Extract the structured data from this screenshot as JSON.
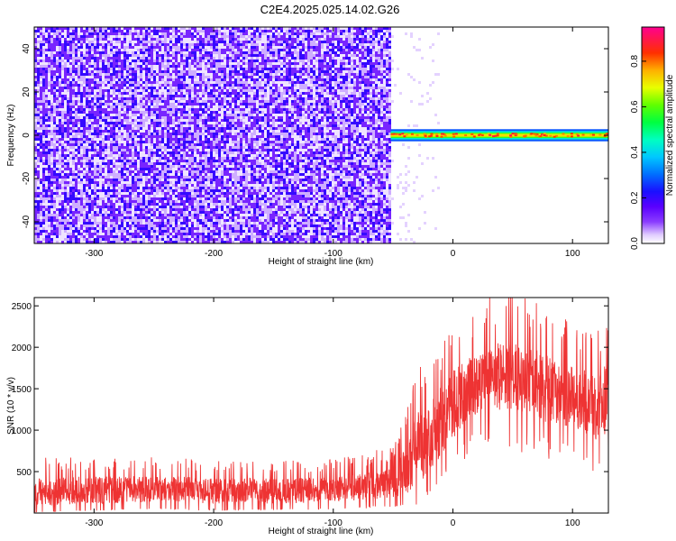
{
  "figure_title": "C2E4.2025.025.14.02.G26",
  "colors": {
    "snr_line": "#ee3333",
    "colormap": [
      "#ffffff",
      "#e7d4ff",
      "#b48cff",
      "#8a3cff",
      "#6a00ff",
      "#2020ff",
      "#0088ff",
      "#00e0ff",
      "#00ff90",
      "#40ff00",
      "#e0ff00",
      "#ffb000",
      "#ff3000",
      "#ff0080"
    ]
  },
  "chart_data": [
    {
      "type": "heatmap",
      "title": "",
      "xlabel": "Height of straight line (km)",
      "ylabel": "Frequency (Hz)",
      "xlim": [
        -350,
        130
      ],
      "ylim": [
        -50,
        50
      ],
      "xticks": [
        -300,
        -200,
        -100,
        0,
        100
      ],
      "yticks": [
        -40,
        -20,
        0,
        20,
        40
      ],
      "grid": false,
      "colorbar": {
        "label": "Normalized spectral amplitude",
        "range": [
          0,
          0.95
        ],
        "ticks": [
          0.0,
          0.2,
          0.4,
          0.6,
          0.8
        ]
      },
      "regions": [
        {
          "description": "broadband noise",
          "x": [
            -350,
            -52
          ],
          "frequency": [
            -50,
            50
          ],
          "amplitude_range": [
            0.05,
            0.2
          ]
        },
        {
          "description": "carrier tone",
          "x": [
            -52,
            130
          ],
          "frequency_center": 0,
          "frequency_halfwidth": 2,
          "peak_amplitude": 0.9
        }
      ]
    },
    {
      "type": "line",
      "title": "",
      "xlabel": "Height of straight line (km)",
      "ylabel": "SNR (10 * v/v)",
      "xlim": [
        -350,
        130
      ],
      "ylim": [
        0,
        2600
      ],
      "xticks": [
        -300,
        -200,
        -100,
        0,
        100
      ],
      "yticks": [
        500,
        1000,
        1500,
        2000,
        2500
      ],
      "grid": false,
      "series": [
        {
          "name": "",
          "x": [
            -350,
            -300,
            -250,
            -200,
            -150,
            -100,
            -75,
            -50,
            -40,
            -30,
            -20,
            -10,
            0,
            10,
            20,
            30,
            40,
            50,
            60,
            70,
            80,
            90,
            100,
            110,
            120,
            130
          ],
          "y_upper": [
            500,
            520,
            520,
            500,
            480,
            500,
            560,
            620,
            900,
            1400,
            1500,
            1700,
            1900,
            2000,
            2100,
            2200,
            2250,
            2250,
            2200,
            2150,
            2100,
            2000,
            1950,
            1900,
            1850,
            2000
          ],
          "y_lower": [
            10,
            40,
            60,
            40,
            50,
            60,
            80,
            100,
            100,
            150,
            300,
            500,
            700,
            900,
            1000,
            1050,
            1050,
            1000,
            1000,
            950,
            900,
            850,
            800,
            750,
            700,
            800
          ]
        }
      ]
    }
  ]
}
